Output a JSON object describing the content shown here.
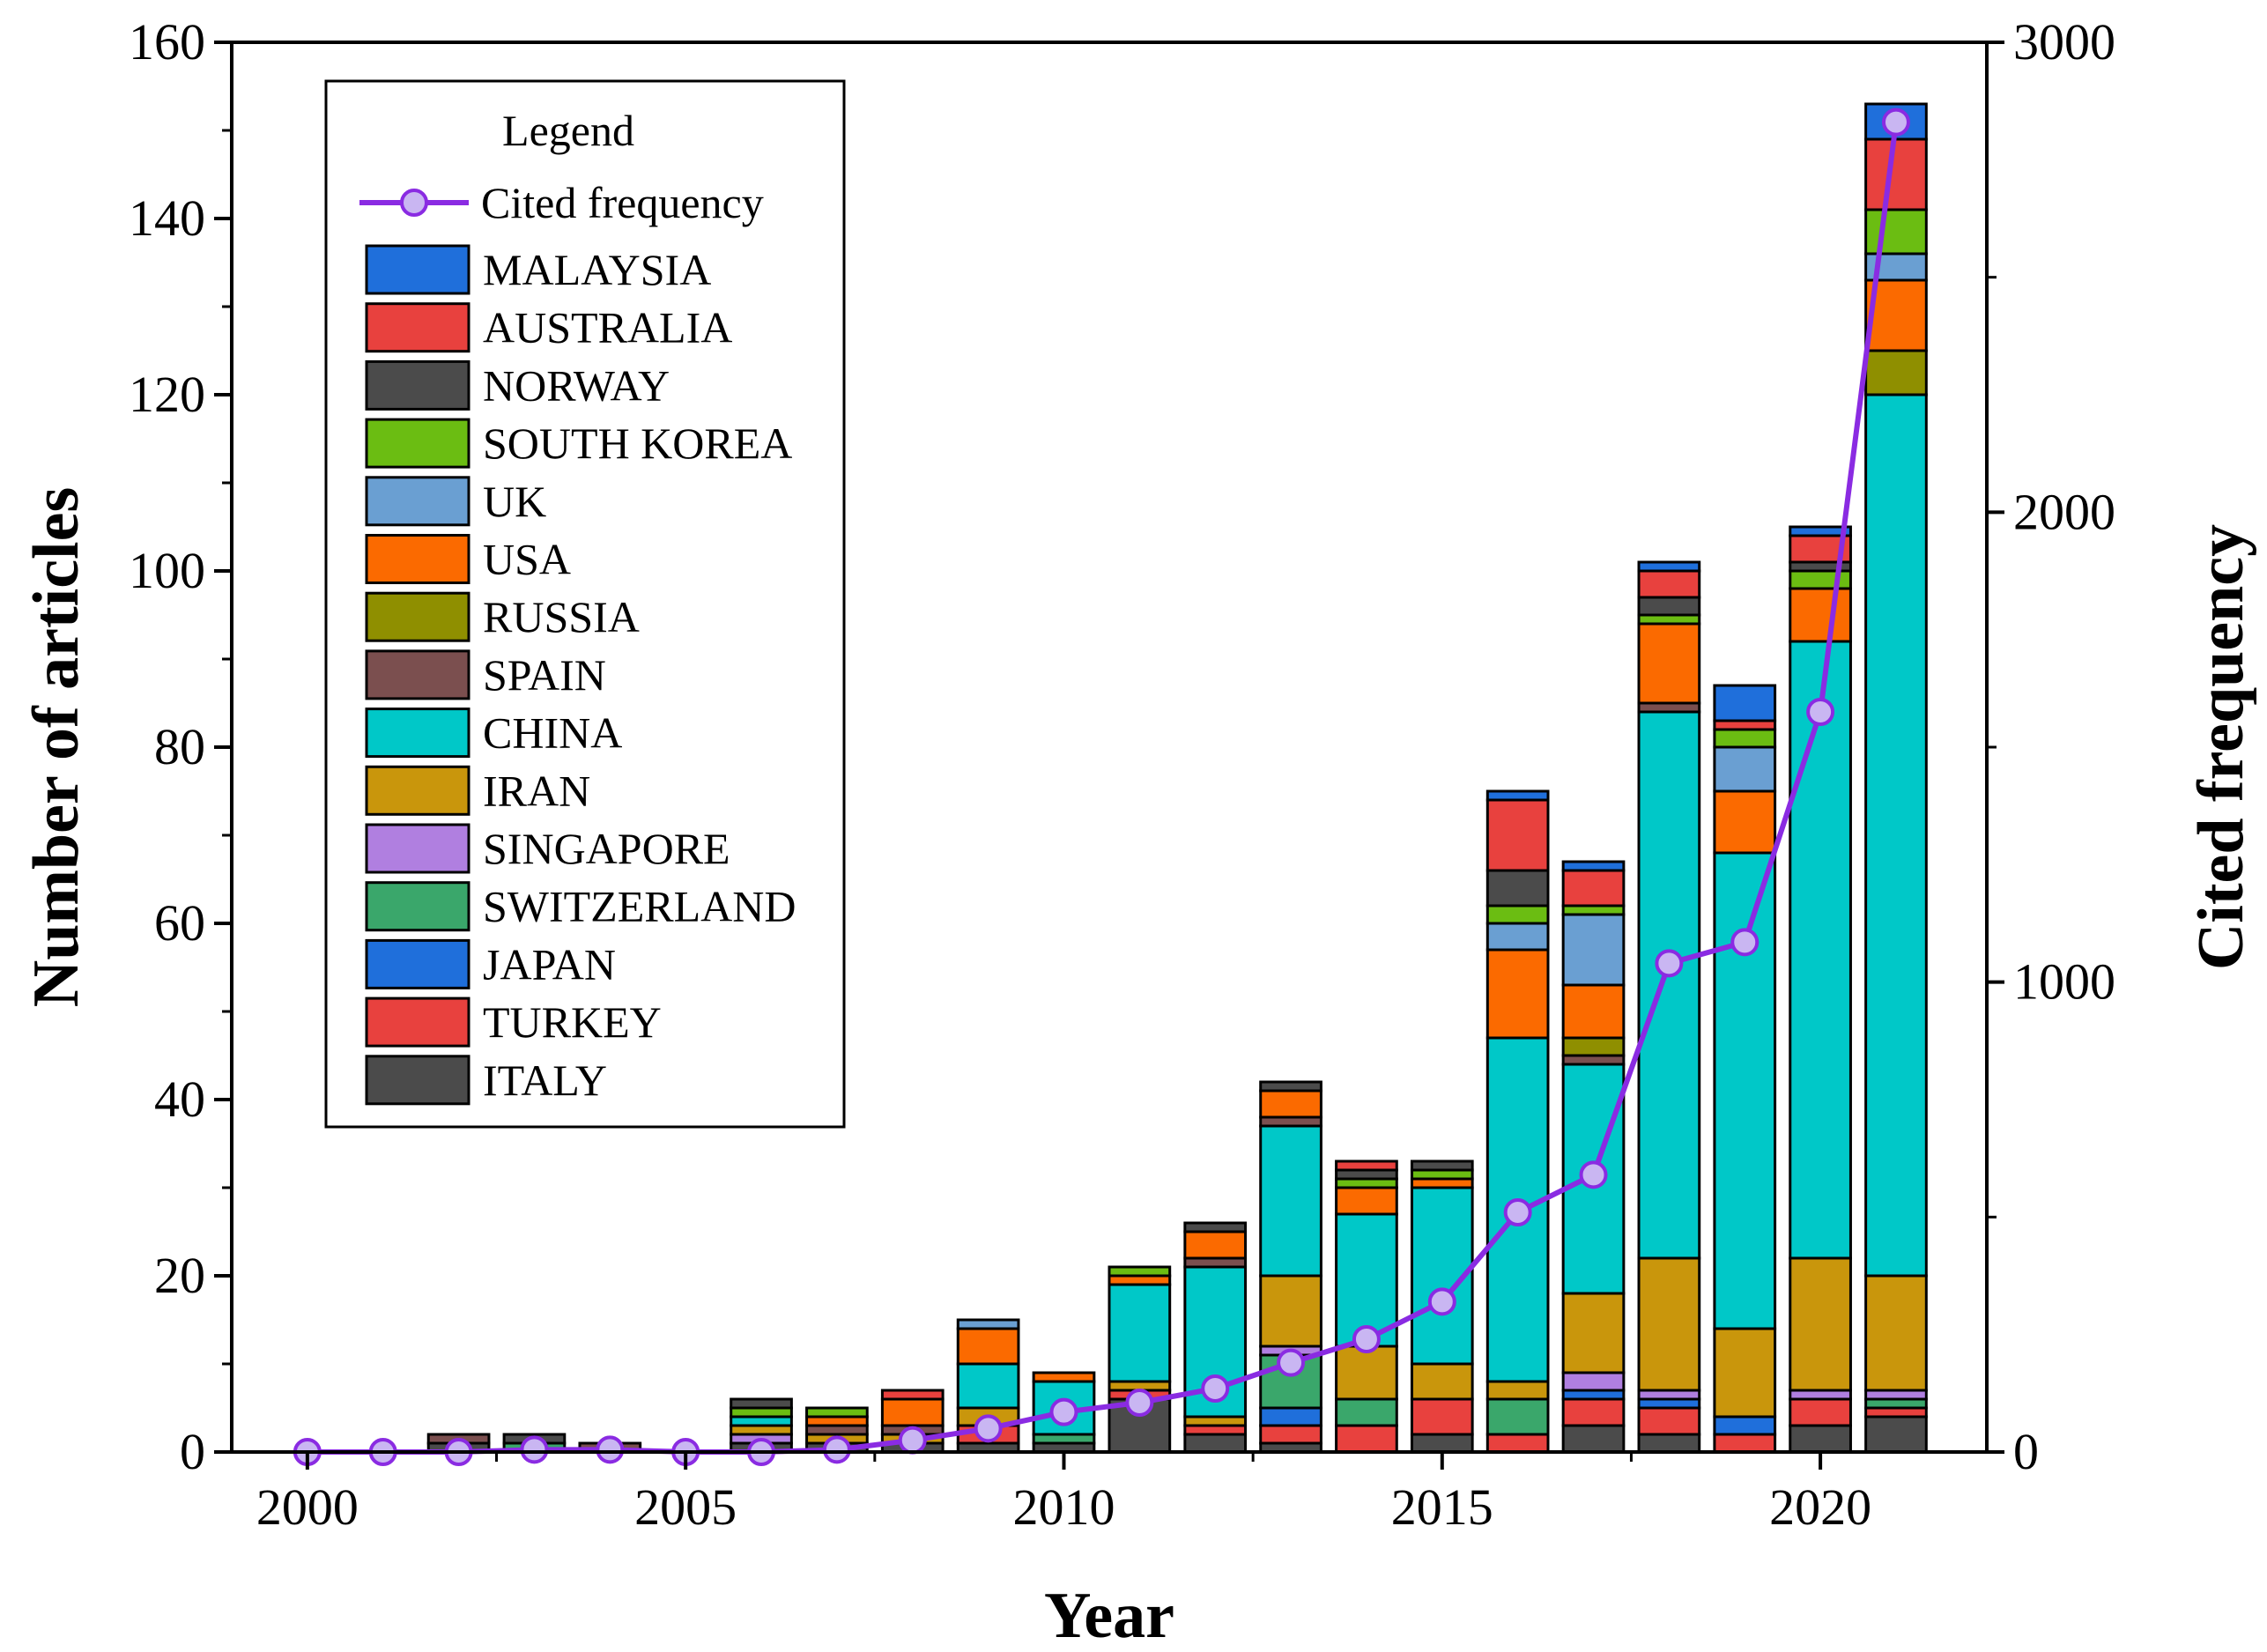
{
  "chart_data": {
    "type": "bar",
    "stacked": true,
    "xlabel": "Year",
    "ylabel": "Number of articles",
    "y2label": "Cited frequency",
    "x": [
      2000,
      2001,
      2002,
      2003,
      2004,
      2005,
      2006,
      2007,
      2008,
      2009,
      2010,
      2011,
      2012,
      2013,
      2014,
      2015,
      2016,
      2017,
      2018,
      2019,
      2020,
      2021
    ],
    "xticks": [
      "2000",
      "2005",
      "2010",
      "2015",
      "2020"
    ],
    "xlim": [
      1999,
      2022.2
    ],
    "ylim": [
      0,
      160
    ],
    "y2lim": [
      0,
      3000
    ],
    "yticks": [
      "0",
      "20",
      "40",
      "60",
      "80",
      "100",
      "120",
      "140",
      "160"
    ],
    "y2ticks": [
      "0",
      "1000",
      "2000",
      "3000"
    ],
    "legend": {
      "title": "Legend",
      "placement": "top-left",
      "line_label": "Cited frequency"
    },
    "series": [
      {
        "name": "ITALY",
        "color": "#4b4b4b",
        "values": [
          0,
          0,
          1,
          0,
          0,
          0,
          1,
          1,
          1,
          1,
          1,
          6,
          2,
          1,
          0,
          2,
          0,
          3,
          2,
          0,
          3,
          4
        ]
      },
      {
        "name": "TURKEY",
        "color": "#e8413e",
        "values": [
          0,
          0,
          0,
          0,
          0,
          0,
          0,
          0,
          0,
          2,
          0,
          1,
          1,
          2,
          3,
          4,
          2,
          3,
          3,
          2,
          3,
          1
        ]
      },
      {
        "name": "JAPAN",
        "color": "#1f6fdb",
        "values": [
          0,
          0,
          0,
          0,
          0,
          0,
          0,
          0,
          0,
          0,
          0,
          0,
          0,
          2,
          0,
          0,
          0,
          1,
          1,
          2,
          0,
          0
        ]
      },
      {
        "name": "SWITZERLAND",
        "color": "#3aa76b",
        "values": [
          0,
          0,
          0,
          1,
          0,
          0,
          0,
          0,
          0,
          0,
          1,
          0,
          0,
          6,
          3,
          0,
          4,
          0,
          0,
          0,
          0,
          1
        ]
      },
      {
        "name": "SINGAPORE",
        "color": "#b07fe0",
        "values": [
          0,
          0,
          0,
          0,
          0,
          0,
          1,
          0,
          0,
          0,
          0,
          0,
          0,
          1,
          0,
          0,
          0,
          2,
          1,
          0,
          1,
          1
        ]
      },
      {
        "name": "IRAN",
        "color": "#c9960c",
        "values": [
          0,
          0,
          0,
          0,
          0,
          0,
          1,
          1,
          1,
          2,
          0,
          1,
          1,
          8,
          6,
          4,
          2,
          9,
          15,
          10,
          15,
          13
        ]
      },
      {
        "name": "CHINA",
        "color": "#00c8c8",
        "values": [
          0,
          0,
          0,
          0,
          0,
          0,
          1,
          0,
          0,
          5,
          6,
          11,
          17,
          17,
          15,
          20,
          39,
          26,
          62,
          54,
          70,
          100
        ]
      },
      {
        "name": "SPAIN",
        "color": "#7b4f4f",
        "values": [
          0,
          0,
          1,
          0,
          1,
          0,
          0,
          1,
          1,
          0,
          0,
          0,
          1,
          1,
          0,
          0,
          0,
          1,
          1,
          0,
          0,
          0
        ]
      },
      {
        "name": "RUSSIA",
        "color": "#8f8f00",
        "values": [
          0,
          0,
          0,
          0,
          0,
          0,
          0,
          0,
          0,
          0,
          0,
          0,
          0,
          0,
          0,
          0,
          0,
          2,
          0,
          0,
          0,
          5
        ]
      },
      {
        "name": "USA",
        "color": "#fb6a00",
        "values": [
          0,
          0,
          0,
          0,
          0,
          0,
          0,
          1,
          3,
          4,
          1,
          1,
          3,
          3,
          3,
          1,
          10,
          6,
          9,
          7,
          6,
          8
        ]
      },
      {
        "name": "UK",
        "color": "#6a9fd2",
        "values": [
          0,
          0,
          0,
          0,
          0,
          0,
          0,
          0,
          0,
          1,
          0,
          0,
          0,
          0,
          0,
          0,
          3,
          8,
          0,
          5,
          0,
          3
        ]
      },
      {
        "name": "SOUTH KOREA",
        "color": "#6bbd12",
        "values": [
          0,
          0,
          0,
          0,
          0,
          0,
          1,
          1,
          0,
          0,
          0,
          1,
          0,
          0,
          1,
          1,
          2,
          1,
          1,
          2,
          2,
          5
        ]
      },
      {
        "name": "NORWAY",
        "color": "#4b4b4b",
        "values": [
          0,
          0,
          0,
          1,
          0,
          0,
          1,
          0,
          0,
          0,
          0,
          0,
          1,
          1,
          1,
          1,
          4,
          0,
          2,
          0,
          1,
          0
        ]
      },
      {
        "name": "AUSTRALIA",
        "color": "#e8413e",
        "values": [
          0,
          0,
          0,
          0,
          0,
          0,
          0,
          0,
          1,
          0,
          0,
          0,
          0,
          0,
          1,
          0,
          8,
          4,
          3,
          1,
          3,
          8
        ]
      },
      {
        "name": "MALAYSIA",
        "color": "#1f6fdb",
        "values": [
          0,
          0,
          0,
          0,
          0,
          0,
          0,
          0,
          0,
          0,
          0,
          0,
          0,
          0,
          0,
          0,
          1,
          1,
          1,
          4,
          1,
          4
        ]
      }
    ],
    "line": {
      "name": "Cited frequency",
      "axis": "right",
      "color": "#8a2be2",
      "values": [
        0,
        0,
        0,
        5,
        5,
        0,
        0,
        5,
        25,
        50,
        85,
        105,
        135,
        190,
        240,
        320,
        510,
        590,
        1040,
        1085,
        1575,
        2830
      ]
    }
  }
}
